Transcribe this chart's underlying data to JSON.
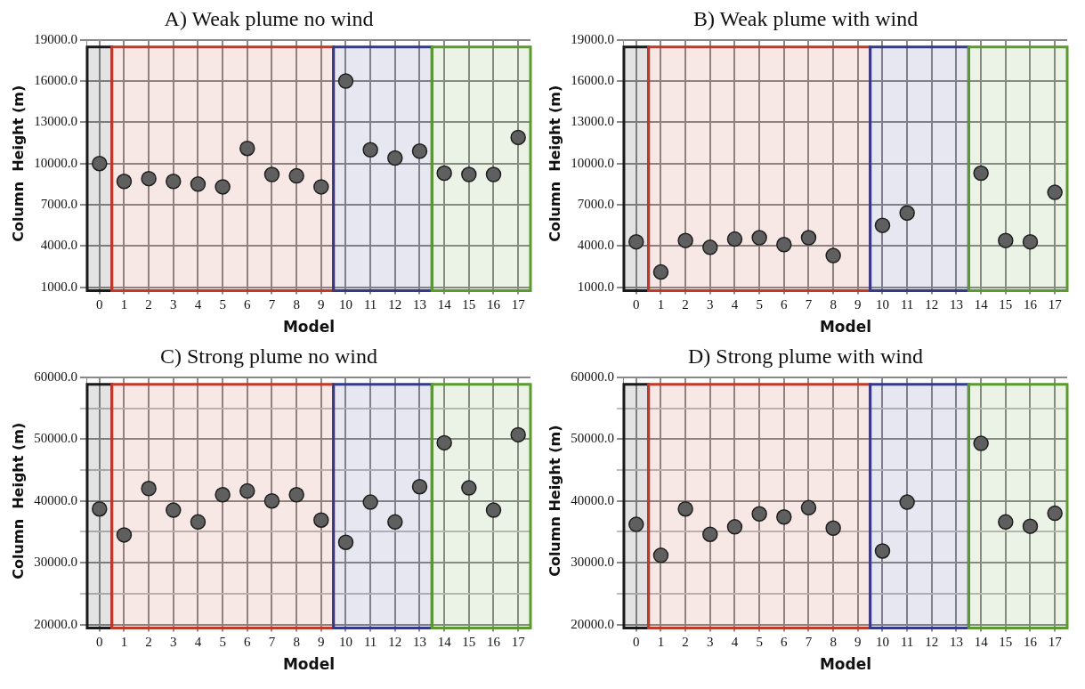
{
  "chart_data": [
    {
      "type": "scatter",
      "title": "A) Weak plume no wind",
      "xlabel": "Model",
      "ylabel": "Column  Height (m)",
      "grid": true,
      "marker": "circle",
      "color": "#5f5f5f",
      "x": [
        0,
        1,
        2,
        3,
        4,
        5,
        6,
        7,
        8,
        9,
        10,
        11,
        12,
        13,
        14,
        15,
        16,
        17
      ],
      "values": [
        10000,
        8700,
        8900,
        8700,
        8500,
        8300,
        11100,
        9200,
        9100,
        8300,
        16000,
        11000,
        10400,
        10900,
        9300,
        9200,
        9200,
        11900
      ],
      "xlim": [
        -0.5,
        17.5
      ],
      "xticks": [
        0,
        1,
        2,
        3,
        4,
        5,
        6,
        7,
        8,
        9,
        10,
        11,
        12,
        13,
        14,
        15,
        16,
        17
      ],
      "ylim": [
        1000,
        19000
      ],
      "yticks": [
        {
          "value": 1000,
          "label": "1000.0"
        },
        {
          "value": 4000,
          "label": "4000.0"
        },
        {
          "value": 7000,
          "label": "7000.0"
        },
        {
          "value": 10000,
          "label": "10000.0"
        },
        {
          "value": 13000,
          "label": "13000.0"
        },
        {
          "value": 16000,
          "label": "16000.0"
        },
        {
          "value": 19000,
          "label": "19000.0"
        }
      ],
      "bands": [
        {
          "axis": "x",
          "from": -0.5,
          "to": 0.5,
          "color": "#1a1a1a"
        },
        {
          "axis": "x",
          "from": 0.5,
          "to": 9.5,
          "color": "#c0392b"
        },
        {
          "axis": "x",
          "from": 9.5,
          "to": 13.5,
          "color": "#343a8a"
        },
        {
          "axis": "x",
          "from": 13.5,
          "to": 17.5,
          "color": "#5a9a2e"
        }
      ]
    },
    {
      "type": "scatter",
      "title": "B) Weak plume with wind",
      "xlabel": "Model",
      "ylabel": "Column  Height (m)",
      "grid": true,
      "marker": "circle",
      "color": "#5f5f5f",
      "x": [
        0,
        1,
        2,
        3,
        4,
        5,
        6,
        7,
        8,
        9,
        10,
        11,
        12,
        13,
        14,
        15,
        16,
        17
      ],
      "values": [
        4300,
        2100,
        4400,
        3900,
        4500,
        4600,
        4100,
        4600,
        3300,
        null,
        5500,
        6400,
        null,
        null,
        9300,
        4400,
        4300,
        7900
      ],
      "xlim": [
        -0.5,
        17.5
      ],
      "xticks": [
        0,
        1,
        2,
        3,
        4,
        5,
        6,
        7,
        8,
        9,
        10,
        11,
        12,
        13,
        14,
        15,
        16,
        17
      ],
      "ylim": [
        1000,
        19000
      ],
      "yticks": [
        {
          "value": 1000,
          "label": "1000.0"
        },
        {
          "value": 4000,
          "label": "4000.0"
        },
        {
          "value": 7000,
          "label": "7000.0"
        },
        {
          "value": 10000,
          "label": "10000.0"
        },
        {
          "value": 13000,
          "label": "13000.0"
        },
        {
          "value": 16000,
          "label": "16000.0"
        },
        {
          "value": 19000,
          "label": "19000.0"
        }
      ],
      "bands": [
        {
          "axis": "x",
          "from": -0.5,
          "to": 0.5,
          "color": "#1a1a1a"
        },
        {
          "axis": "x",
          "from": 0.5,
          "to": 9.5,
          "color": "#c0392b"
        },
        {
          "axis": "x",
          "from": 9.5,
          "to": 13.5,
          "color": "#343a8a"
        },
        {
          "axis": "x",
          "from": 13.5,
          "to": 17.5,
          "color": "#5a9a2e"
        }
      ]
    },
    {
      "type": "scatter",
      "title": "C) Strong plume no wind",
      "xlabel": "Model",
      "ylabel": "Column  Height (m)",
      "grid": true,
      "marker": "circle",
      "color": "#5f5f5f",
      "x": [
        0,
        1,
        2,
        3,
        4,
        5,
        6,
        7,
        8,
        9,
        10,
        11,
        12,
        13,
        14,
        15,
        16,
        17
      ],
      "values": [
        38700,
        34500,
        42000,
        38500,
        36600,
        41000,
        41600,
        40000,
        41000,
        36900,
        33300,
        39800,
        36600,
        42300,
        49400,
        42100,
        38500,
        50700
      ],
      "xlim": [
        -0.5,
        17.5
      ],
      "xticks": [
        0,
        1,
        2,
        3,
        4,
        5,
        6,
        7,
        8,
        9,
        10,
        11,
        12,
        13,
        14,
        15,
        16,
        17
      ],
      "ylim": [
        20000,
        60000
      ],
      "yticks": [
        {
          "value": 20000,
          "label": "20000.0"
        },
        {
          "value": 25000,
          "label": null
        },
        {
          "value": 30000,
          "label": "30000.0"
        },
        {
          "value": 35000,
          "label": null
        },
        {
          "value": 40000,
          "label": "40000.0"
        },
        {
          "value": 45000,
          "label": null
        },
        {
          "value": 50000,
          "label": "50000.0"
        },
        {
          "value": 55000,
          "label": null
        },
        {
          "value": 60000,
          "label": "60000.0"
        }
      ],
      "bands": [
        {
          "axis": "x",
          "from": -0.5,
          "to": 0.5,
          "color": "#1a1a1a"
        },
        {
          "axis": "x",
          "from": 0.5,
          "to": 9.5,
          "color": "#c0392b"
        },
        {
          "axis": "x",
          "from": 9.5,
          "to": 13.5,
          "color": "#343a8a"
        },
        {
          "axis": "x",
          "from": 13.5,
          "to": 17.5,
          "color": "#5a9a2e"
        }
      ]
    },
    {
      "type": "scatter",
      "title": "D) Strong plume with wind",
      "xlabel": "Model",
      "ylabel": "Column Height (m)",
      "grid": true,
      "marker": "circle",
      "color": "#5f5f5f",
      "x": [
        0,
        1,
        2,
        3,
        4,
        5,
        6,
        7,
        8,
        9,
        10,
        11,
        12,
        13,
        14,
        15,
        16,
        17
      ],
      "values": [
        36200,
        31200,
        38700,
        34600,
        35800,
        37900,
        37400,
        38900,
        35600,
        null,
        31900,
        39800,
        null,
        null,
        49300,
        36600,
        35900,
        38000
      ],
      "xlim": [
        -0.5,
        17.5
      ],
      "xticks": [
        0,
        1,
        2,
        3,
        4,
        5,
        6,
        7,
        8,
        9,
        10,
        11,
        12,
        13,
        14,
        15,
        16,
        17
      ],
      "ylim": [
        20000,
        60000
      ],
      "yticks": [
        {
          "value": 20000,
          "label": "20000.0"
        },
        {
          "value": 25000,
          "label": null
        },
        {
          "value": 30000,
          "label": "30000.0"
        },
        {
          "value": 35000,
          "label": null
        },
        {
          "value": 40000,
          "label": "40000.0"
        },
        {
          "value": 45000,
          "label": null
        },
        {
          "value": 50000,
          "label": "50000.0"
        },
        {
          "value": 55000,
          "label": null
        },
        {
          "value": 60000,
          "label": "60000.0"
        }
      ],
      "bands": [
        {
          "axis": "x",
          "from": -0.5,
          "to": 0.5,
          "color": "#1a1a1a"
        },
        {
          "axis": "x",
          "from": 0.5,
          "to": 9.5,
          "color": "#c0392b"
        },
        {
          "axis": "x",
          "from": 9.5,
          "to": 13.5,
          "color": "#343a8a"
        },
        {
          "axis": "x",
          "from": 13.5,
          "to": 17.5,
          "color": "#5a9a2e"
        }
      ]
    }
  ]
}
